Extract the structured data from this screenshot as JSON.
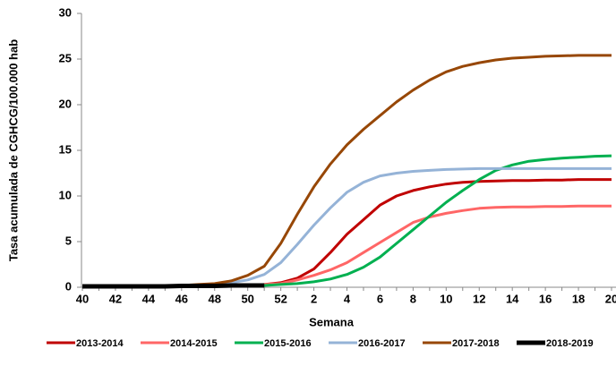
{
  "chart_data": {
    "type": "line",
    "x_label": "Semana",
    "y_label": "Tasa acumulada  de CGHCG/100.000 hab",
    "categories": [
      "40",
      null,
      "42",
      null,
      "44",
      null,
      "46",
      null,
      "48",
      null,
      "50",
      null,
      "52",
      null,
      "2",
      null,
      "4",
      null,
      "6",
      null,
      "8",
      null,
      "10",
      null,
      "12",
      null,
      "14",
      null,
      "16",
      null,
      "18",
      null,
      "20"
    ],
    "ylim": [
      0,
      30
    ],
    "yticks": [
      0,
      5,
      10,
      15,
      20,
      25,
      30
    ],
    "series": [
      {
        "name": "2013-2014",
        "color": "#c00000",
        "values": [
          0.1,
          0.1,
          0.1,
          0.1,
          0.1,
          0.1,
          0.15,
          0.15,
          0.2,
          0.2,
          0.2,
          0.3,
          0.5,
          1.0,
          2.0,
          3.8,
          5.8,
          7.4,
          9.0,
          10.0,
          10.6,
          11.0,
          11.3,
          11.5,
          11.6,
          11.65,
          11.7,
          11.7,
          11.75,
          11.75,
          11.8,
          11.8,
          11.8
        ]
      },
      {
        "name": "2014-2015",
        "color": "#ff6666",
        "values": [
          0.1,
          0.1,
          0.1,
          0.1,
          0.1,
          0.1,
          0.15,
          0.15,
          0.2,
          0.2,
          0.2,
          0.3,
          0.4,
          0.8,
          1.3,
          1.9,
          2.7,
          3.8,
          4.9,
          6.0,
          7.1,
          7.7,
          8.1,
          8.4,
          8.65,
          8.75,
          8.8,
          8.8,
          8.85,
          8.85,
          8.9,
          8.9,
          8.9
        ]
      },
      {
        "name": "2015-2016",
        "color": "#00b050",
        "values": [
          0.1,
          0.1,
          0.1,
          0.1,
          0.1,
          0.1,
          0.15,
          0.15,
          0.2,
          0.2,
          0.2,
          0.2,
          0.3,
          0.4,
          0.6,
          0.9,
          1.4,
          2.2,
          3.3,
          4.8,
          6.3,
          7.8,
          9.3,
          10.6,
          11.8,
          12.8,
          13.4,
          13.8,
          14.0,
          14.15,
          14.25,
          14.35,
          14.4
        ]
      },
      {
        "name": "2016-2017",
        "color": "#95b3d7",
        "values": [
          0.1,
          0.1,
          0.1,
          0.1,
          0.1,
          0.1,
          0.15,
          0.2,
          0.3,
          0.5,
          0.8,
          1.4,
          2.7,
          4.7,
          6.8,
          8.7,
          10.4,
          11.5,
          12.2,
          12.5,
          12.7,
          12.8,
          12.9,
          12.95,
          13.0,
          13.0,
          13.0,
          13.0,
          13.0,
          13.0,
          13.0,
          13.0,
          13.0
        ]
      },
      {
        "name": "2017-2018",
        "color": "#974706",
        "values": [
          0.1,
          0.1,
          0.1,
          0.1,
          0.15,
          0.2,
          0.2,
          0.3,
          0.4,
          0.7,
          1.3,
          2.3,
          4.8,
          8.0,
          11.0,
          13.5,
          15.6,
          17.3,
          18.8,
          20.3,
          21.6,
          22.7,
          23.6,
          24.2,
          24.6,
          24.9,
          25.1,
          25.2,
          25.3,
          25.35,
          25.4,
          25.4,
          25.4
        ]
      },
      {
        "name": "2018-2019",
        "color": "#000000",
        "values": [
          0.1,
          0.1,
          0.1,
          0.1,
          0.1,
          0.1,
          0.15,
          0.15,
          0.15,
          0.2,
          0.2,
          0.2,
          null,
          null,
          null,
          null,
          null,
          null,
          null,
          null,
          null,
          null,
          null,
          null,
          null,
          null,
          null,
          null,
          null,
          null,
          null,
          null,
          null
        ]
      }
    ]
  }
}
